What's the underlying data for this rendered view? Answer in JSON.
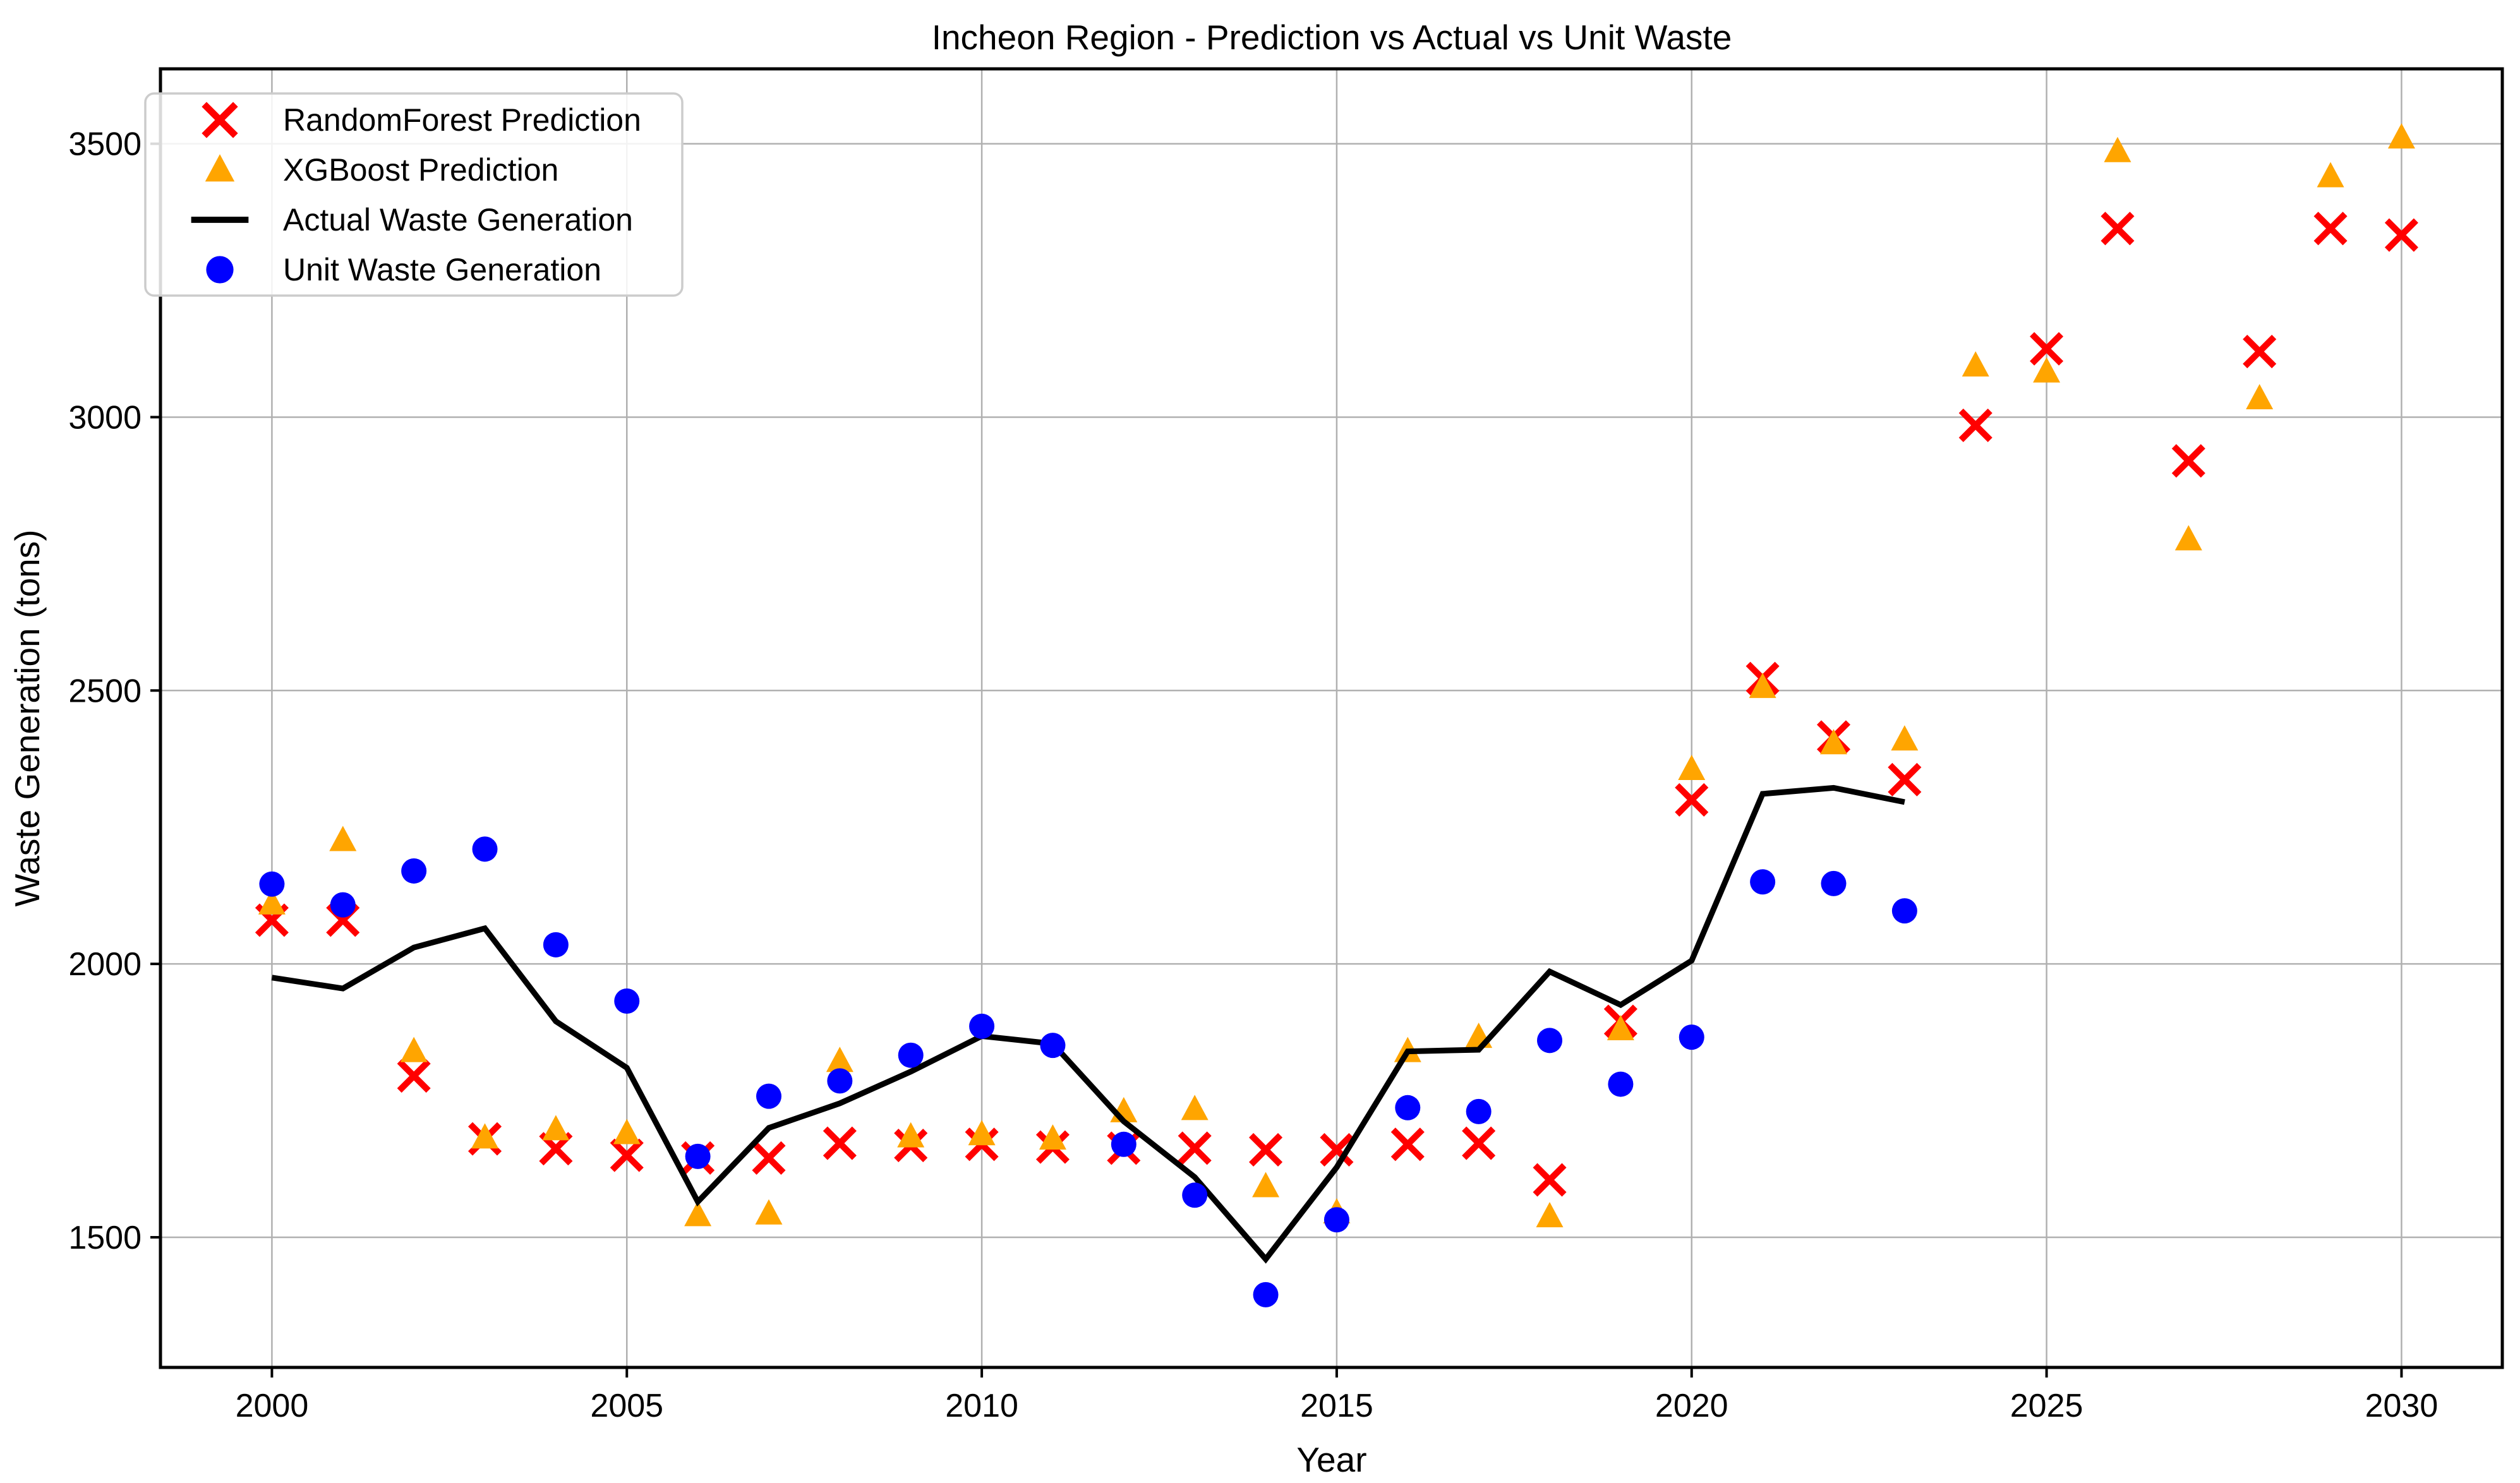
{
  "title": "Incheon Region - Prediction vs Actual vs Unit Waste",
  "axes": {
    "xlabel": "Year",
    "ylabel": "Waste Generation (tons)"
  },
  "colors": {
    "randomforest": "#ff0000",
    "xgboost": "#ffa500",
    "actual": "#000000",
    "unit": "#0000ff",
    "grid": "#b0b0b0",
    "spine": "#000000",
    "legend_border": "#cccccc",
    "background": "#ffffff"
  },
  "legend": {
    "entries": [
      {
        "label": "RandomForest Prediction",
        "marker": "x",
        "color": "#ff0000"
      },
      {
        "label": "XGBoost Prediction",
        "marker": "triangle",
        "color": "#ffa500"
      },
      {
        "label": "Actual Waste Generation",
        "marker": "line",
        "color": "#000000"
      },
      {
        "label": "Unit Waste Generation",
        "marker": "circle",
        "color": "#0000ff"
      }
    ]
  },
  "chart_data": {
    "type": "scatter",
    "title": "Incheon Region - Prediction vs Actual vs Unit Waste",
    "xlabel": "Year",
    "ylabel": "Waste Generation (tons)",
    "x": [
      2000,
      2001,
      2002,
      2003,
      2004,
      2005,
      2006,
      2007,
      2008,
      2009,
      2010,
      2011,
      2012,
      2013,
      2014,
      2015,
      2016,
      2017,
      2018,
      2019,
      2020,
      2021,
      2022,
      2023,
      2024,
      2025,
      2026,
      2027,
      2028,
      2029,
      2030
    ],
    "series": [
      {
        "name": "RandomForest Prediction",
        "marker": "x",
        "color": "#ff0000",
        "values": [
          2080,
          2080,
          1795,
          1680,
          1662,
          1650,
          1645,
          1645,
          1672,
          1668,
          1670,
          1665,
          1663,
          1663,
          1660,
          1660,
          1670,
          1672,
          1605,
          1895,
          2300,
          2522,
          2415,
          2337,
          2985,
          3125,
          3345,
          2920,
          3120,
          3345,
          3333
        ]
      },
      {
        "name": "XGBoost Prediction",
        "marker": "triangle",
        "color": "#ffa500",
        "values": [
          2110,
          2226,
          1840,
          1682,
          1697,
          1690,
          1540,
          1543,
          1822,
          1684,
          1688,
          1680,
          1730,
          1734,
          1593,
          1545,
          1840,
          1866,
          1538,
          1880,
          2356,
          2506,
          2403,
          2410,
          3094,
          3083,
          3486,
          2776,
          3034,
          3440,
          3511
        ]
      },
      {
        "name": "Actual Waste Generation",
        "marker": "line",
        "color": "#000000",
        "values": [
          1975,
          1955,
          2030,
          2065,
          1895,
          1810,
          1565,
          1700,
          1745,
          1803,
          1868,
          1854,
          1712,
          1610,
          1460,
          1628,
          1840,
          1843,
          1986,
          1925,
          2006,
          2311,
          2322,
          2296,
          null,
          null,
          null,
          null,
          null,
          null,
          null
        ]
      },
      {
        "name": "Unit Waste Generation",
        "marker": "circle",
        "color": "#0000ff",
        "values": [
          2146,
          2108,
          2170,
          2210,
          2035,
          1932,
          1648,
          1758,
          1786,
          1833,
          1886,
          1851,
          1670,
          1577,
          1395,
          1532,
          1737,
          1730,
          1860,
          1780,
          1866,
          2150,
          2147,
          2097,
          null,
          null,
          null,
          null,
          null,
          null,
          null
        ]
      }
    ],
    "x_ticks": [
      2000,
      2005,
      2010,
      2015,
      2020,
      2025,
      2030
    ],
    "y_ticks": [
      1500,
      2000,
      2500,
      3000,
      3500
    ],
    "xlim": [
      1998.43,
      2031.42
    ],
    "ylim": [
      1262,
      3637
    ],
    "grid": true,
    "legend_position": "upper left"
  }
}
